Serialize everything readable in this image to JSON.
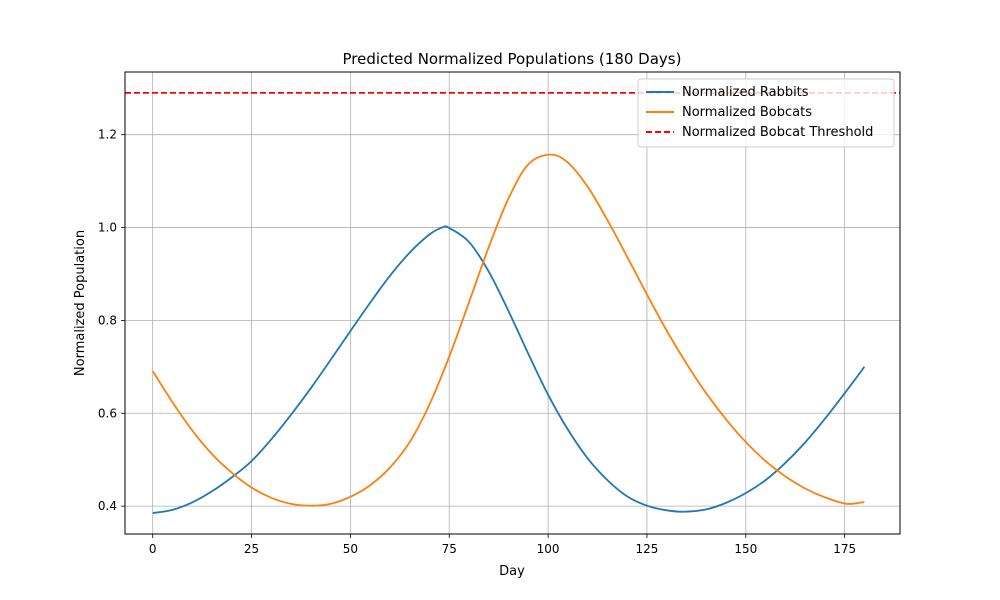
{
  "chart_data": {
    "type": "line",
    "title": "Predicted Normalized Populations (180 Days)",
    "xlabel": "Day",
    "ylabel": "Normalized Population",
    "xlim": [
      -7,
      189
    ],
    "ylim": [
      0.34,
      1.335
    ],
    "xticks": [
      0,
      25,
      50,
      75,
      100,
      125,
      150,
      175
    ],
    "yticks": [
      0.4,
      0.6,
      0.8,
      1.0,
      1.2
    ],
    "xtick_labels": [
      "0",
      "25",
      "50",
      "75",
      "100",
      "125",
      "150",
      "175"
    ],
    "ytick_labels": [
      "0.4",
      "0.6",
      "0.8",
      "1.0",
      "1.2"
    ],
    "grid": true,
    "legend_position": "top-right",
    "series": [
      {
        "name": "Normalized Rabbits",
        "color": "#1f77b4",
        "style": "solid",
        "x": [
          0,
          5,
          10,
          15,
          20,
          25,
          30,
          35,
          40,
          45,
          50,
          55,
          60,
          65,
          70,
          73.5,
          75,
          80,
          85,
          90,
          95,
          100,
          105,
          110,
          115,
          120,
          125,
          130,
          134.5,
          140,
          145,
          150,
          155,
          160,
          165,
          170,
          175,
          180
        ],
        "y": [
          0.385,
          0.392,
          0.408,
          0.432,
          0.462,
          0.497,
          0.544,
          0.597,
          0.654,
          0.715,
          0.777,
          0.838,
          0.896,
          0.946,
          0.985,
          1.001,
          0.999,
          0.969,
          0.905,
          0.82,
          0.728,
          0.64,
          0.565,
          0.503,
          0.456,
          0.421,
          0.401,
          0.391,
          0.388,
          0.393,
          0.407,
          0.428,
          0.456,
          0.493,
          0.537,
          0.588,
          0.643,
          0.7
        ]
      },
      {
        "name": "Normalized Bobcats",
        "color": "#ff7f0e",
        "style": "solid",
        "x": [
          0,
          5,
          10,
          15,
          20,
          25,
          30,
          35,
          40,
          45,
          50,
          55,
          60,
          65,
          70,
          75,
          80,
          85,
          90,
          95,
          100.5,
          105,
          110,
          115,
          120,
          125,
          130,
          135,
          140,
          145,
          150,
          155,
          160,
          165,
          170,
          175.5,
          180
        ],
        "y": [
          0.691,
          0.624,
          0.563,
          0.512,
          0.472,
          0.44,
          0.418,
          0.405,
          0.401,
          0.405,
          0.42,
          0.445,
          0.483,
          0.538,
          0.619,
          0.722,
          0.839,
          0.958,
          1.063,
          1.136,
          1.157,
          1.14,
          1.088,
          1.016,
          0.937,
          0.856,
          0.778,
          0.707,
          0.643,
          0.587,
          0.538,
          0.497,
          0.464,
          0.438,
          0.419,
          0.405,
          0.409
        ]
      },
      {
        "name": "Normalized Bobcat Threshold",
        "color": "#ff0000",
        "style": "dashed",
        "x": [
          -7,
          189
        ],
        "y": [
          1.29,
          1.29
        ]
      }
    ]
  }
}
